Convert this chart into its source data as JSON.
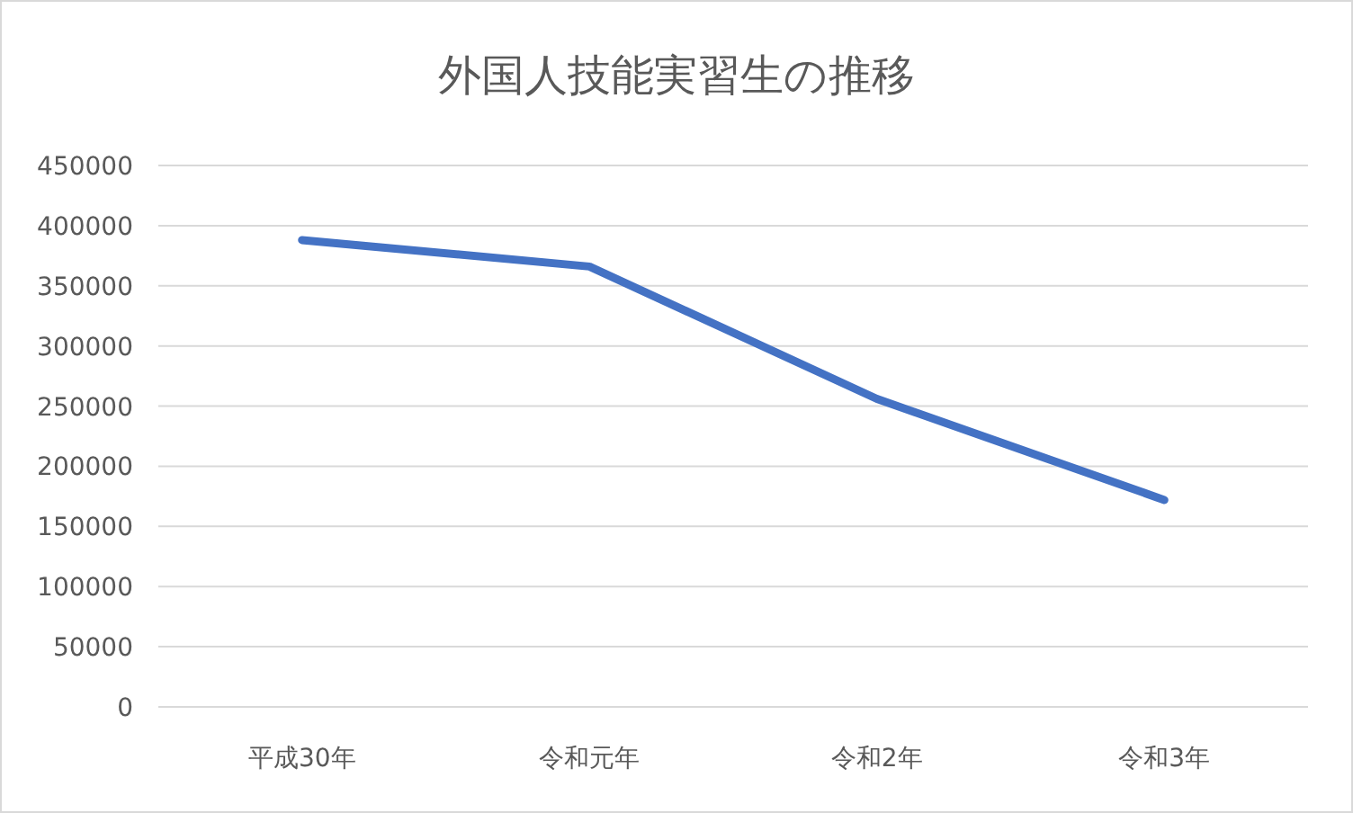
{
  "chart_data": {
    "type": "line",
    "title": "外国人技能実習生の推移",
    "categories": [
      "平成30年",
      "令和元年",
      "令和2年",
      "令和3年"
    ],
    "series": [
      {
        "color": "#4472c4",
        "values": [
          388000,
          366000,
          256000,
          172000
        ]
      }
    ],
    "ylim": [
      0,
      450000
    ],
    "yticks": [
      0,
      50000,
      100000,
      150000,
      200000,
      250000,
      300000,
      350000,
      400000,
      450000
    ],
    "grid": "y",
    "marker": "none",
    "line_style": "solid"
  }
}
